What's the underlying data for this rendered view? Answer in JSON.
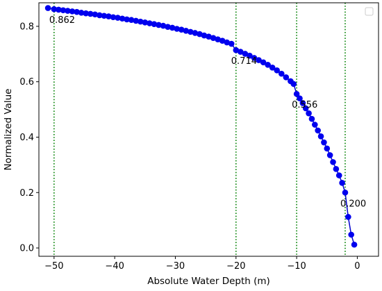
{
  "chart_data": {
    "type": "scatter",
    "title": "",
    "xlabel": "Absolute Water Depth (m)",
    "ylabel": "Normalized Value",
    "xlim": [
      -52.5,
      3.5
    ],
    "ylim": [
      -0.03,
      0.885
    ],
    "grid": false,
    "legend_placement": "top-right",
    "legend_entries": [],
    "x_ticks": [
      -50,
      -40,
      -30,
      -20,
      -10,
      0
    ],
    "x_tick_labels": [
      "−50",
      "−40",
      "−30",
      "−20",
      "−10",
      "0"
    ],
    "y_ticks": [
      0.0,
      0.2,
      0.4,
      0.6,
      0.8
    ],
    "y_tick_labels": [
      "0.0",
      "0.2",
      "0.4",
      "0.6",
      "0.8"
    ],
    "series": [
      {
        "marker_color": "#0000ee",
        "line_color": "#0000cc",
        "points": [
          [
            -51,
            0.866
          ],
          [
            -50,
            0.862
          ],
          [
            -49.25,
            0.86
          ],
          [
            -48.5,
            0.858
          ],
          [
            -47.75,
            0.856
          ],
          [
            -47,
            0.854
          ],
          [
            -46.25,
            0.852
          ],
          [
            -45.5,
            0.849
          ],
          [
            -44.75,
            0.847
          ],
          [
            -44,
            0.845
          ],
          [
            -43.25,
            0.843
          ],
          [
            -42.5,
            0.84
          ],
          [
            -41.75,
            0.838
          ],
          [
            -41,
            0.836
          ],
          [
            -40.25,
            0.833
          ],
          [
            -39.5,
            0.831
          ],
          [
            -38.75,
            0.828
          ],
          [
            -38,
            0.825
          ],
          [
            -37.25,
            0.823
          ],
          [
            -36.5,
            0.82
          ],
          [
            -35.75,
            0.817
          ],
          [
            -35,
            0.814
          ],
          [
            -34.25,
            0.811
          ],
          [
            -33.5,
            0.808
          ],
          [
            -32.75,
            0.805
          ],
          [
            -32,
            0.802
          ],
          [
            -31.25,
            0.798
          ],
          [
            -30.5,
            0.795
          ],
          [
            -29.75,
            0.791
          ],
          [
            -29,
            0.788
          ],
          [
            -28.25,
            0.784
          ],
          [
            -27.5,
            0.78
          ],
          [
            -26.75,
            0.776
          ],
          [
            -26,
            0.772
          ],
          [
            -25.25,
            0.767
          ],
          [
            -24.5,
            0.763
          ],
          [
            -23.75,
            0.758
          ],
          [
            -23,
            0.753
          ],
          [
            -22.25,
            0.748
          ],
          [
            -21.5,
            0.742
          ],
          [
            -20.75,
            0.737
          ],
          [
            -20,
            0.714
          ],
          [
            -19.25,
            0.708
          ],
          [
            -18.5,
            0.701
          ],
          [
            -17.75,
            0.694
          ],
          [
            -17,
            0.686
          ],
          [
            -16.25,
            0.678
          ],
          [
            -15.5,
            0.67
          ],
          [
            -14.75,
            0.661
          ],
          [
            -14,
            0.651
          ],
          [
            -13.25,
            0.641
          ],
          [
            -12.5,
            0.629
          ],
          [
            -11.75,
            0.616
          ],
          [
            -11,
            0.602
          ],
          [
            -10.5,
            0.592
          ],
          [
            -10,
            0.556
          ],
          [
            -9.5,
            0.54
          ],
          [
            -9,
            0.523
          ],
          [
            -8.5,
            0.504
          ],
          [
            -8,
            0.486
          ],
          [
            -7.5,
            0.466
          ],
          [
            -7,
            0.445
          ],
          [
            -6.5,
            0.424
          ],
          [
            -6,
            0.403
          ],
          [
            -5.5,
            0.381
          ],
          [
            -5,
            0.359
          ],
          [
            -4.5,
            0.335
          ],
          [
            -4,
            0.31
          ],
          [
            -3.5,
            0.285
          ],
          [
            -3,
            0.262
          ],
          [
            -2.5,
            0.235
          ],
          [
            -2,
            0.2
          ],
          [
            -1.5,
            0.112
          ],
          [
            -1,
            0.048
          ],
          [
            -0.5,
            0.012
          ]
        ]
      }
    ],
    "vlines": {
      "x": [
        -50,
        -20,
        -10,
        -2
      ],
      "color": "#008000",
      "style": "dotted"
    },
    "annotations": [
      {
        "text": "0.862",
        "x": -50,
        "y": 0.862
      },
      {
        "text": "0.714",
        "x": -20,
        "y": 0.714
      },
      {
        "text": "0.556",
        "x": -10,
        "y": 0.556
      },
      {
        "text": "0.200",
        "x": -2,
        "y": 0.2
      }
    ]
  }
}
